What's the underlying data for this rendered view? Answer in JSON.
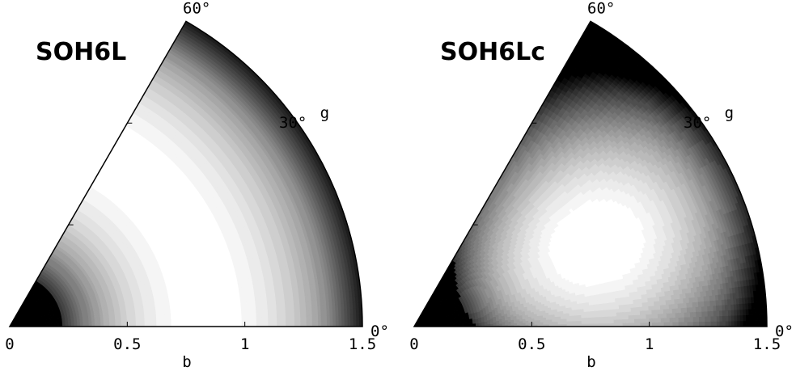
{
  "chart_data": [
    {
      "type": "heatmap",
      "subtype": "polar-sector-contour",
      "title": "SOH6L",
      "xlabel": "b",
      "xlim": [
        0,
        1.5
      ],
      "x_ticks": [
        "0",
        "0.5",
        "1",
        "1.5"
      ],
      "angular_label": "g",
      "angle_range_deg": [
        0,
        60
      ],
      "angle_ticks": [
        "0°",
        "30°",
        "60°"
      ],
      "colormap": "grayscale (dark = high, light = low)",
      "minimum": {
        "b": 0.84,
        "g_deg": 0
      },
      "shape": "rings"
    },
    {
      "type": "heatmap",
      "subtype": "polar-sector-contour",
      "title": "SOH6Lc",
      "xlabel": "b",
      "xlim": [
        0,
        1.5
      ],
      "x_ticks": [
        "0",
        "0.5",
        "1",
        "1.5"
      ],
      "angular_label": "g",
      "angle_range_deg": [
        0,
        60
      ],
      "angle_ticks": [
        "0°",
        "30°",
        "60°"
      ],
      "colormap": "grayscale (dark = high, light = low)",
      "minimum": {
        "b": 0.84,
        "g_deg": 24
      },
      "shape": "triaxial"
    }
  ]
}
